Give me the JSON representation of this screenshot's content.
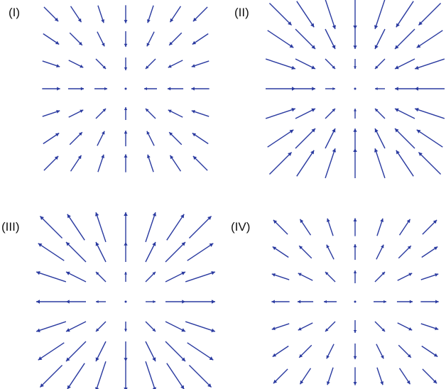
{
  "colors": {
    "arrow": "#2a3aa0",
    "label": "#111111"
  },
  "panels": [
    {
      "id": "I",
      "label": "(I)",
      "field": "inward-sqrt"
    },
    {
      "id": "II",
      "label": "(II)",
      "field": "inward-linear"
    },
    {
      "id": "III",
      "label": "(III)",
      "field": "outward-linear"
    },
    {
      "id": "IV",
      "label": "(IV)",
      "field": "outward-sqrt"
    }
  ]
}
